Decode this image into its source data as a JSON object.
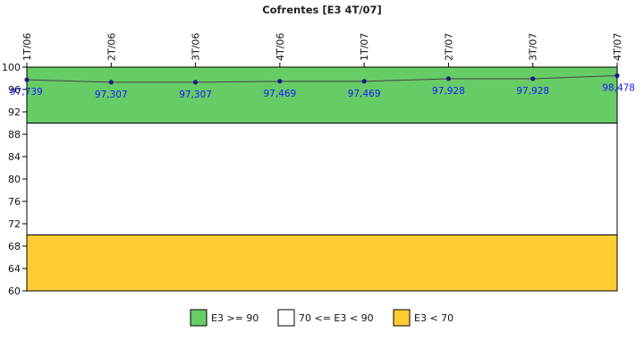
{
  "chart_data": {
    "type": "line",
    "title": "Cofrentes [E3 4T/07]",
    "categories": [
      "1T/06",
      "2T/06",
      "3T/06",
      "4T/06",
      "1T/07",
      "2T/07",
      "3T/07",
      "4T/07"
    ],
    "series": [
      {
        "values": [
          97.739,
          97.307,
          97.307,
          97.469,
          97.469,
          97.928,
          97.928,
          98.478
        ],
        "data_labels": [
          "97,739",
          "97,307",
          "97,307",
          "97,469",
          "97,469",
          "97,928",
          "97,928",
          "98,478"
        ],
        "color": "#1a1a8c"
      }
    ],
    "ylim": [
      60,
      100
    ],
    "yticks": [
      60,
      64,
      68,
      72,
      76,
      80,
      84,
      88,
      92,
      96,
      100
    ],
    "bands": [
      {
        "from": 90,
        "to": 100,
        "color": "#66cc66"
      },
      {
        "from": 70,
        "to": 90,
        "color": "#ffffff"
      },
      {
        "from": 60,
        "to": 70,
        "color": "#ffcc33"
      }
    ],
    "legend": {
      "position": "bottom",
      "items": [
        {
          "label": "E3 >= 90",
          "color": "#66cc66"
        },
        {
          "label": "70 <= E3 < 90",
          "color": "#ffffff"
        },
        {
          "label": "E3 < 70",
          "color": "#ffcc33"
        }
      ]
    },
    "data_label_color": "#1a1aff"
  }
}
